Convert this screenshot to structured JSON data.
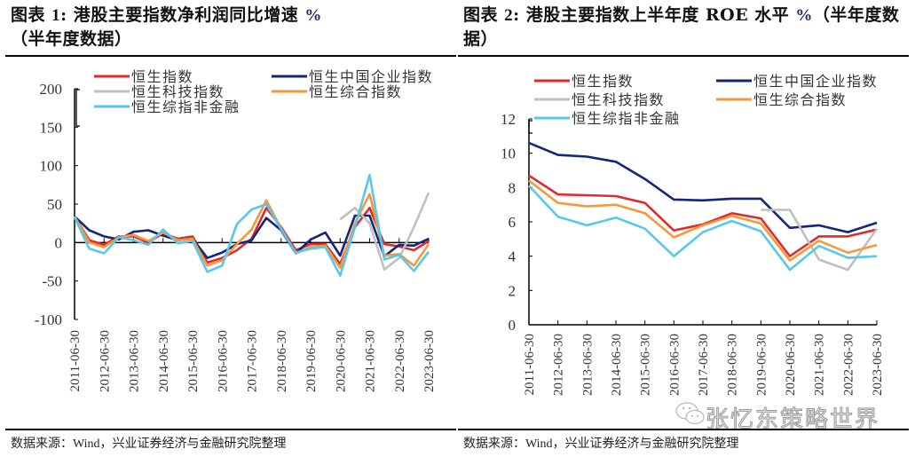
{
  "chart_data": [
    {
      "id": "chart1",
      "type": "line",
      "title_prefix": "图表 ",
      "title_num": "1",
      "title_main": ": 港股主要指数净利润同比增速 ",
      "title_pct": "%",
      "title_suffix": "（半年度数据）",
      "xlabel": "",
      "ylabel": "",
      "ylim": [
        -100,
        200
      ],
      "yticks": [
        "200",
        "150",
        "100",
        "50",
        "0",
        "-50",
        "-100"
      ],
      "ytick_values": [
        200,
        150,
        100,
        50,
        0,
        -50,
        -100
      ],
      "xtick_labels": [
        "2011-06-30",
        "2012-06-30",
        "2013-06-30",
        "2014-06-30",
        "2015-06-30",
        "2016-06-30",
        "2017-06-30",
        "2018-06-30",
        "2019-06-30",
        "2020-06-30",
        "2021-06-30",
        "2022-06-30",
        "2023-06-30"
      ],
      "x": [
        "2011-06",
        "2011-12",
        "2012-06",
        "2012-12",
        "2013-06",
        "2013-12",
        "2014-06",
        "2014-12",
        "2015-06",
        "2015-12",
        "2016-06",
        "2016-12",
        "2017-06",
        "2017-12",
        "2018-06",
        "2018-12",
        "2019-06",
        "2019-12",
        "2020-06",
        "2020-12",
        "2021-06",
        "2021-12",
        "2022-06",
        "2022-12",
        "2023-06"
      ],
      "legend_position": "top",
      "series": [
        {
          "name": "恒生指数",
          "color": "#e02b2b",
          "values": [
            34,
            3,
            -3,
            8,
            8,
            0,
            12,
            5,
            8,
            -26,
            -20,
            -10,
            5,
            45,
            20,
            -10,
            -2,
            -2,
            -28,
            20,
            45,
            -2,
            -5,
            -10,
            2
          ]
        },
        {
          "name": "恒生中国企业指数",
          "color": "#13267a",
          "values": [
            34,
            16,
            8,
            4,
            14,
            16,
            9,
            3,
            5,
            -20,
            -13,
            -2,
            3,
            32,
            16,
            -14,
            4,
            13,
            -17,
            35,
            35,
            -18,
            -3,
            -4,
            5
          ]
        },
        {
          "name": "恒生科技指数",
          "color": "#c0c0c0",
          "values": [
            null,
            null,
            null,
            null,
            null,
            null,
            null,
            null,
            null,
            null,
            null,
            null,
            null,
            null,
            null,
            null,
            null,
            null,
            30,
            45,
            25,
            -35,
            -20,
            20,
            65
          ]
        },
        {
          "name": "恒生综合指数",
          "color": "#f7983a",
          "values": [
            34,
            0,
            -6,
            7,
            10,
            2,
            13,
            3,
            5,
            -30,
            -23,
            -2,
            17,
            55,
            18,
            -14,
            -6,
            -4,
            -33,
            25,
            63,
            -17,
            -15,
            -30,
            -2
          ]
        },
        {
          "name": "恒生综指非金融",
          "color": "#56c8ee",
          "values": [
            33,
            -8,
            -14,
            7,
            3,
            -3,
            17,
            -1,
            2,
            -38,
            -30,
            24,
            43,
            50,
            17,
            -13,
            -8,
            -6,
            -43,
            20,
            88,
            -22,
            -16,
            -37,
            -12
          ]
        }
      ]
    },
    {
      "id": "chart2",
      "type": "line",
      "title_prefix": "图表 ",
      "title_num": "2",
      "title_main": ": 港股主要指数上半年度 ROE 水平 ",
      "title_pct": "%",
      "title_suffix": "（半年度数据）",
      "xlabel": "",
      "ylabel": "",
      "ylim": [
        0,
        12
      ],
      "yticks": [
        "12",
        "10",
        "8",
        "6",
        "4",
        "2",
        "0"
      ],
      "ytick_values": [
        12,
        10,
        8,
        6,
        4,
        2,
        0
      ],
      "xtick_labels": [
        "2011-06-30",
        "2012-06-30",
        "2013-06-30",
        "2014-06-30",
        "2015-06-30",
        "2016-06-30",
        "2017-06-30",
        "2018-06-30",
        "2019-06-30",
        "2020-06-30",
        "2021-06-30",
        "2022-06-30",
        "2023-06-30"
      ],
      "x": [
        "2011-06-30",
        "2012-06-30",
        "2013-06-30",
        "2014-06-30",
        "2015-06-30",
        "2016-06-30",
        "2017-06-30",
        "2018-06-30",
        "2019-06-30",
        "2020-06-30",
        "2021-06-30",
        "2022-06-30",
        "2023-06-30"
      ],
      "legend_position": "top",
      "series": [
        {
          "name": "恒生指数",
          "color": "#e02b2b",
          "values": [
            8.7,
            7.6,
            7.55,
            7.5,
            7.1,
            5.5,
            5.85,
            6.5,
            6.2,
            4.0,
            5.15,
            5.15,
            5.55
          ]
        },
        {
          "name": "恒生中国企业指数",
          "color": "#13267a",
          "values": [
            10.6,
            9.9,
            9.8,
            9.5,
            8.5,
            7.3,
            7.25,
            7.35,
            7.35,
            5.65,
            5.8,
            5.4,
            5.95
          ]
        },
        {
          "name": "恒生科技指数",
          "color": "#c0c0c0",
          "values": [
            null,
            null,
            null,
            null,
            null,
            null,
            null,
            null,
            6.7,
            6.7,
            3.8,
            3.2,
            5.6
          ]
        },
        {
          "name": "恒生综合指数",
          "color": "#f7983a",
          "values": [
            8.4,
            7.1,
            6.9,
            7.0,
            6.5,
            5.1,
            5.8,
            6.35,
            5.9,
            3.75,
            4.9,
            4.2,
            4.65
          ]
        },
        {
          "name": "恒生综指非金融",
          "color": "#56c8ee",
          "values": [
            8.1,
            6.3,
            5.8,
            6.25,
            5.6,
            4.0,
            5.4,
            6.05,
            5.45,
            3.2,
            4.6,
            3.9,
            4.0
          ]
        }
      ]
    }
  ],
  "footer": {
    "source_left": "数据来源：Wind，兴业证券经济与金融研究院整理",
    "source_right": "数据来源：Wind，兴业证券经济与金融研究院整理"
  },
  "watermark": {
    "text": "张忆东策略世界",
    "icon": "wechat-icon"
  }
}
